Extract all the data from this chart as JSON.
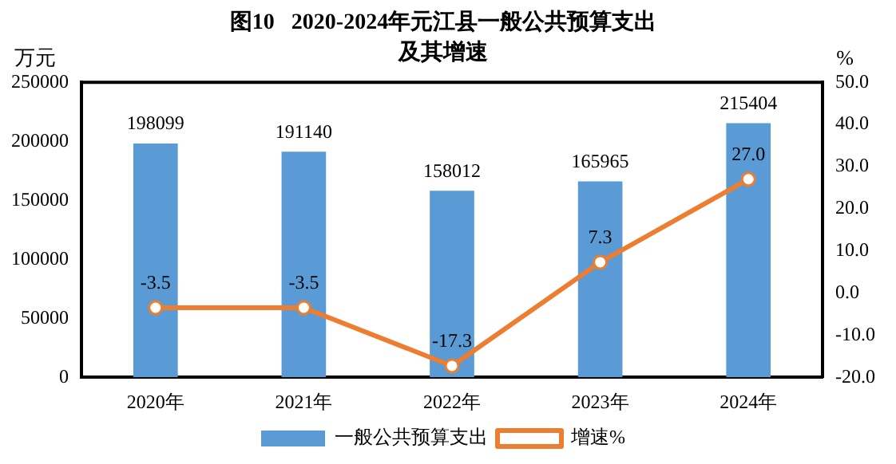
{
  "chart_data": {
    "type": "bar",
    "title": "图10   2020-2024年元江县一般公共预算支出",
    "subtitle": "及其增速",
    "ylabel": "万元",
    "y2label": "%",
    "categories": [
      "2020年",
      "2021年",
      "2022年",
      "2023年",
      "2024年"
    ],
    "series": [
      {
        "name": "一般公共预算支出",
        "color": "#5b9bd5",
        "values": [
          198099,
          191140,
          158012,
          165965,
          215404
        ]
      },
      {
        "name": "增速%",
        "type": "line",
        "axis": "y2",
        "color": "#ed7d31",
        "marker": "circle",
        "values": [
          -3.5,
          -3.5,
          -17.3,
          7.3,
          27.0
        ],
        "value_labels": [
          "-3.5",
          "-3.5",
          "-17.3",
          "7.3",
          "27.0"
        ]
      }
    ],
    "ylim": [
      0,
      250000
    ],
    "yticks": [
      0,
      50000,
      100000,
      150000,
      200000,
      250000
    ],
    "y2lim": [
      -20,
      50
    ],
    "y2ticks": [
      {
        "value": -20,
        "label": "-20.0"
      },
      {
        "value": -10,
        "label": "-10.0"
      },
      {
        "value": 0,
        "label": "0.0"
      },
      {
        "value": 10,
        "label": "10.0"
      },
      {
        "value": 20,
        "label": "20.0"
      },
      {
        "value": 30,
        "label": "30.0"
      },
      {
        "value": 40,
        "label": "40.0"
      },
      {
        "value": 50,
        "label": "50.0"
      }
    ],
    "data_labels": true,
    "grid": false,
    "legend": "bottom"
  }
}
